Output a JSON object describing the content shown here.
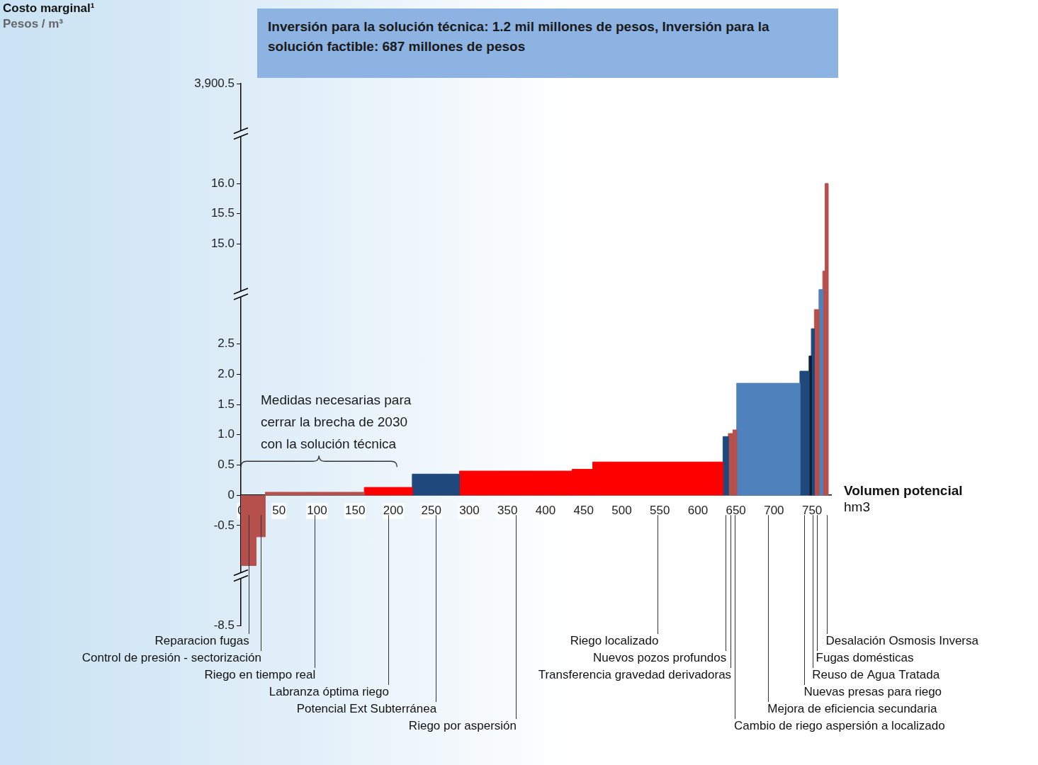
{
  "chart_data": {
    "type": "bar",
    "title": "Inversión para la solución técnica: 1.2 mil millones de pesos, Inversión para la solución factible: 687 millones de pesos",
    "y_label": "Costo marginal¹",
    "y_unit": "Pesos / m³",
    "x_label": "Volumen potencial",
    "x_unit": "hm3",
    "categories": [
      "Reparacion fugas",
      "Control de presión - sectorización",
      "Riego en tiempo real",
      "Labranza óptima riego",
      "Potencial Ext Subterránea",
      "Riego por aspersión",
      null,
      "Riego localizado",
      "Nuevos pozos profundos",
      "Transferencia gravedad derivadoras",
      "Cambio de riego aspersión a localizado",
      "Mejora de eficiencia secundaria",
      "Nuevas presas para riego",
      null,
      "Reuso de Agua Tratada",
      "Fugas domésticas",
      null,
      null,
      "Desalación Osmosis Inversa"
    ],
    "widths": [
      20,
      12,
      130,
      63,
      62,
      148,
      27,
      171,
      7,
      6,
      5,
      83,
      12,
      3,
      4,
      6,
      5,
      3,
      4
    ],
    "values": [
      -3.7,
      -1.4,
      0.05,
      0.13,
      0.35,
      0.4,
      0.43,
      0.55,
      0.97,
      1.02,
      1.08,
      1.85,
      2.05,
      2.3,
      4.4,
      6.8,
      9.3,
      11.6,
      16.2
    ],
    "colors": [
      "#b5504d",
      "#b5504d",
      "#b5504d",
      "#ff0000",
      "#1f497d",
      "#ff0000",
      "#ff0000",
      "#ff0000",
      "#1f497d",
      "#b5504d",
      "#b5504d",
      "#4f81bd",
      "#1f497d",
      "#0f1f33",
      "#1f497d",
      "#b5504d",
      "#4f81bd",
      "#b5504d",
      "#b5504d"
    ],
    "xlim": [
      0,
      775
    ],
    "xticks": [
      0,
      50,
      100,
      150,
      200,
      250,
      300,
      350,
      400,
      450,
      500,
      550,
      600,
      650,
      700,
      750
    ],
    "ylim": [
      -8.5,
      3900.5
    ],
    "yticks": [
      -8.5,
      -0.5,
      0,
      0.5,
      {
        "value": 1,
        "label": "1.0"
      },
      1.5,
      {
        "value": 2,
        "label": "2.0"
      },
      2.5,
      {
        "value": 15,
        "label": "15.0"
      },
      15.5,
      {
        "value": 16,
        "label": "16.0"
      },
      {
        "value": 3900.5,
        "label": "3,900.5"
      }
    ],
    "annotations": [
      {
        "text": "Medidas necesarias para cerrar la brecha de 2030 con la solución técnica",
        "x_range": [
          0,
          205
        ]
      }
    ],
    "grid": false
  }
}
